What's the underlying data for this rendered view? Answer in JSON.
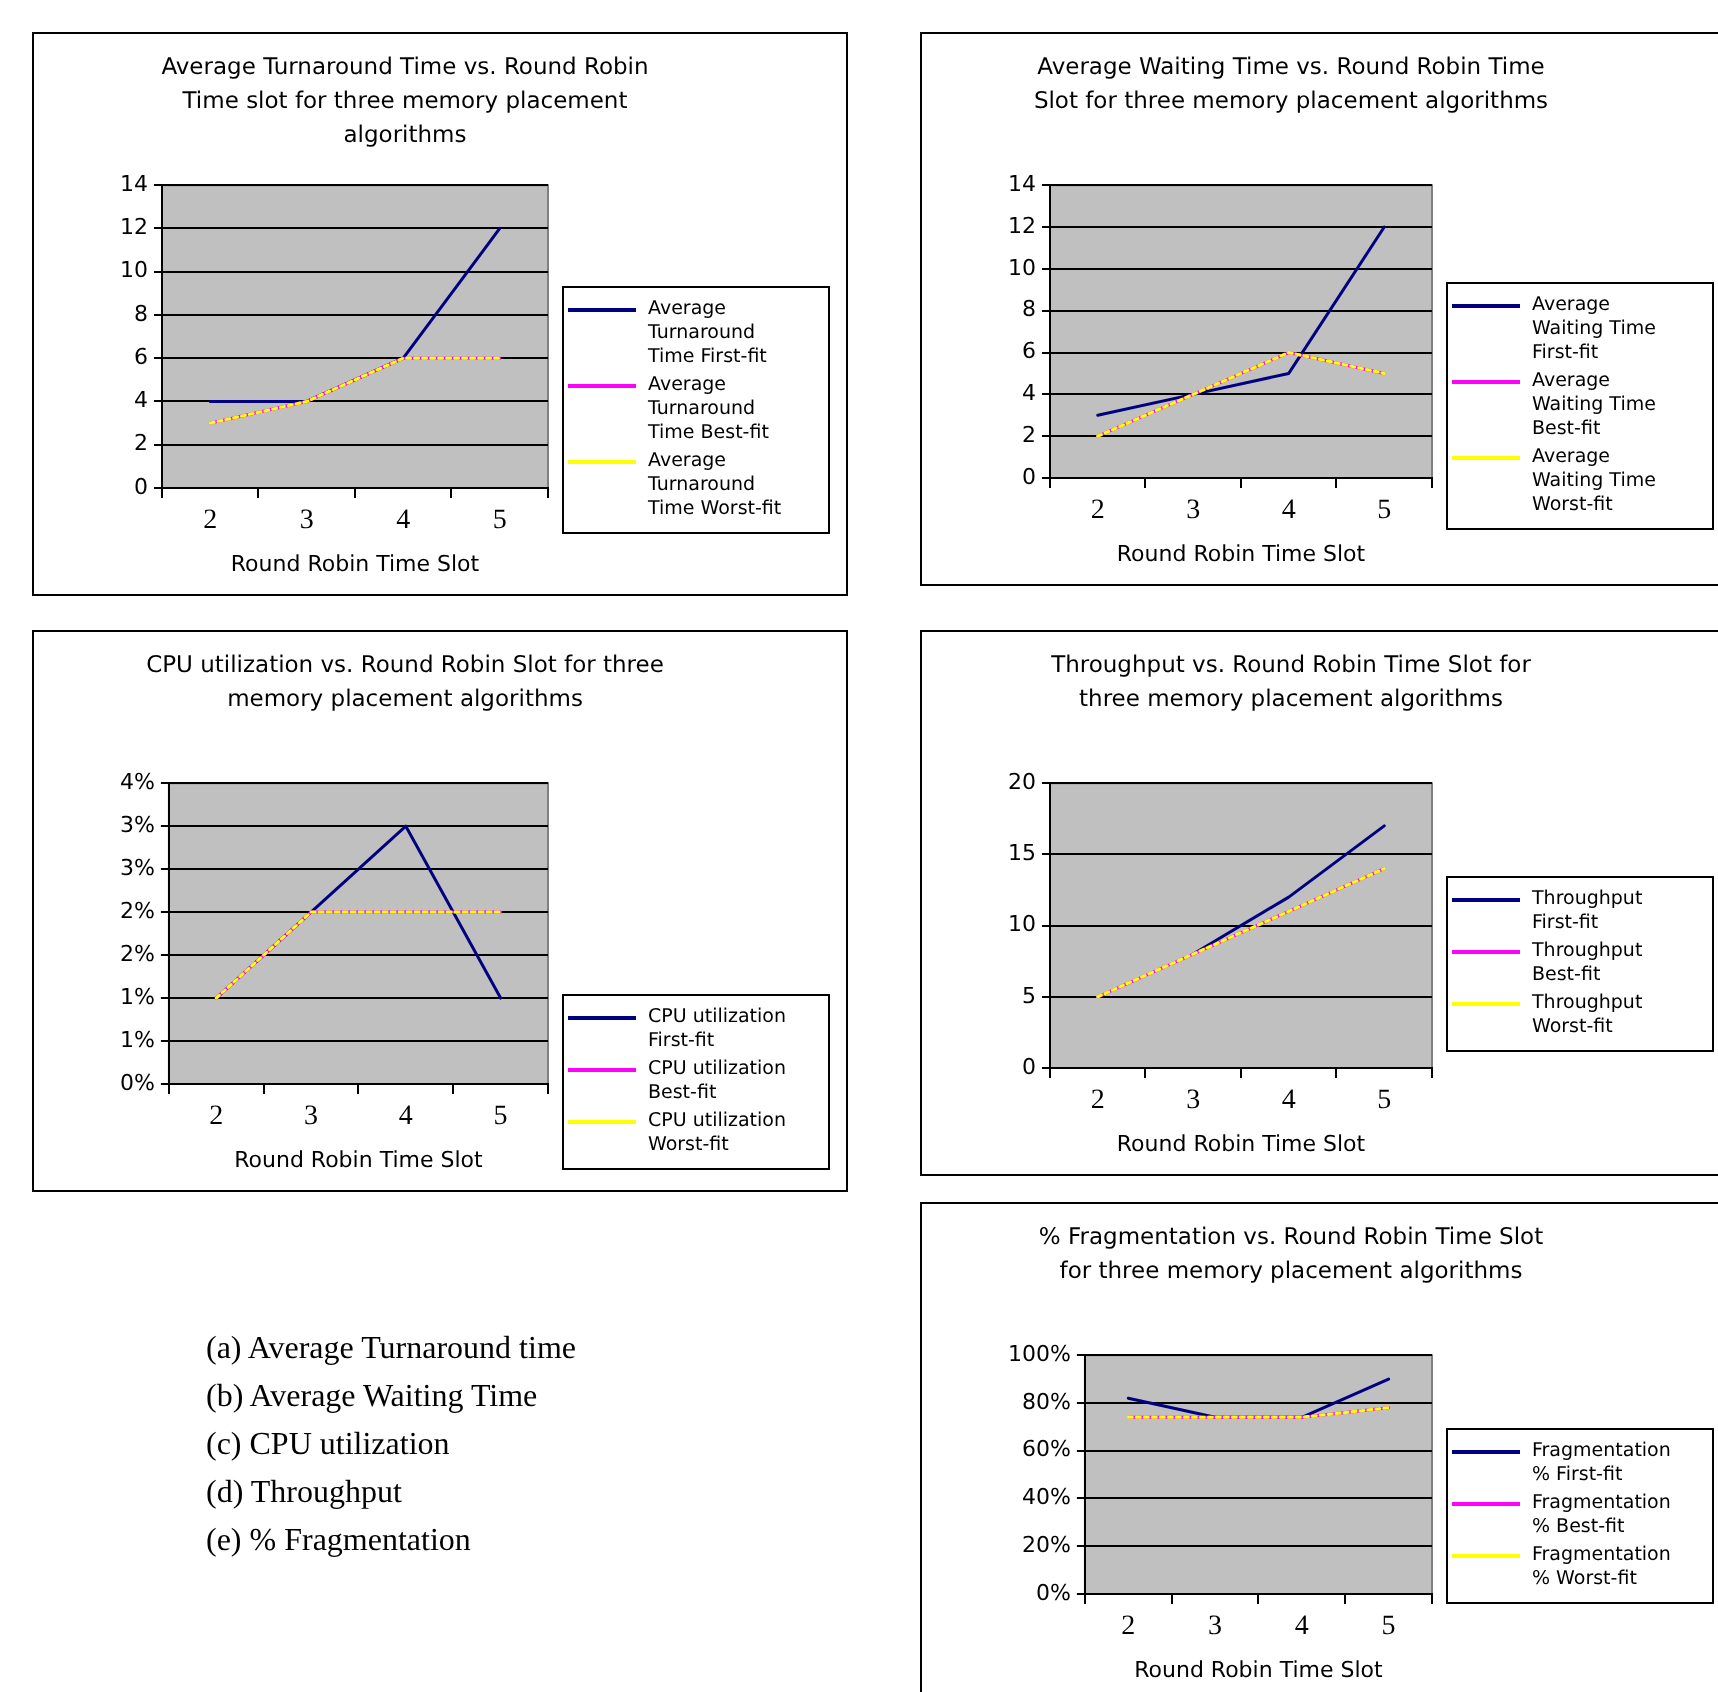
{
  "chart_data": [
    {
      "type": "line",
      "title": "Average Turnaround Time vs. Round Robin Time slot for three memory placement algorithms",
      "xlabel": "Round Robin Time Slot",
      "categories": [
        "2",
        "3",
        "4",
        "5"
      ],
      "ylim": [
        0,
        14
      ],
      "yticks": [
        0,
        2,
        4,
        6,
        8,
        10,
        12,
        14
      ],
      "grid": "y",
      "legend": "right",
      "marker": "none",
      "series": [
        {
          "name": "Average Turnaround Time First-fit",
          "color": "#000080",
          "values": [
            4,
            4,
            6,
            12
          ]
        },
        {
          "name": "Average Turnaround Time Best-fit",
          "color": "#ff00ff",
          "values": [
            3,
            4,
            6,
            6
          ]
        },
        {
          "name": "Average Turnaround Time Worst-fit",
          "color": "#ffff00",
          "values": [
            3,
            4,
            6,
            6
          ],
          "line_style": "dashed"
        }
      ]
    },
    {
      "type": "line",
      "title": "Average Waiting Time vs. Round Robin Time Slot for three memory placement algorithms",
      "xlabel": "Round Robin Time Slot",
      "categories": [
        "2",
        "3",
        "4",
        "5"
      ],
      "ylim": [
        0,
        14
      ],
      "yticks": [
        0,
        2,
        4,
        6,
        8,
        10,
        12,
        14
      ],
      "grid": "y",
      "legend": "right",
      "marker": "none",
      "series": [
        {
          "name": "Average Waiting Time First-fit",
          "color": "#000080",
          "values": [
            3,
            4,
            5,
            12
          ]
        },
        {
          "name": "Average Waiting Time Best-fit",
          "color": "#ff00ff",
          "values": [
            2,
            4,
            6,
            5
          ]
        },
        {
          "name": "Average Waiting Time Worst-fit",
          "color": "#ffff00",
          "values": [
            2,
            4,
            6,
            5
          ],
          "line_style": "dashed"
        }
      ]
    },
    {
      "type": "line",
      "title": "CPU utilization vs. Round Robin Slot for three memory placement algorithms",
      "xlabel": "Round Robin Time Slot",
      "categories": [
        "2",
        "3",
        "4",
        "5"
      ],
      "ylim": [
        0,
        3.5
      ],
      "yticks": [
        {
          "value": 0,
          "label": "0%"
        },
        {
          "value": 0.5,
          "label": "1%"
        },
        {
          "value": 1,
          "label": "1%"
        },
        {
          "value": 1.5,
          "label": "2%"
        },
        {
          "value": 2,
          "label": "2%"
        },
        {
          "value": 2.5,
          "label": "3%"
        },
        {
          "value": 3,
          "label": "3%"
        },
        {
          "value": 3.5,
          "label": "4%"
        }
      ],
      "grid": "y",
      "legend": "bottom right",
      "marker": "none",
      "series": [
        {
          "name": "CPU utilization First-fit",
          "color": "#000080",
          "values": [
            1,
            2,
            3,
            1
          ]
        },
        {
          "name": "CPU utilization Best-fit",
          "color": "#ff00ff",
          "values": [
            1,
            2,
            2,
            2
          ]
        },
        {
          "name": "CPU utilization Worst-fit",
          "color": "#ffff00",
          "values": [
            1,
            2,
            2,
            2
          ],
          "line_style": "dashed"
        }
      ]
    },
    {
      "type": "line",
      "title": "Throughput vs. Round Robin Time Slot for three memory placement algorithms",
      "xlabel": "Round Robin Time Slot",
      "categories": [
        "2",
        "3",
        "4",
        "5"
      ],
      "ylim": [
        0,
        20
      ],
      "yticks": [
        0,
        5,
        10,
        15,
        20
      ],
      "grid": "y",
      "legend": "right",
      "marker": "none",
      "series": [
        {
          "name": "Throughput First-fit",
          "color": "#000080",
          "values": [
            null,
            8,
            12,
            17
          ]
        },
        {
          "name": "Throughput Best-fit",
          "color": "#ff00ff",
          "values": [
            5,
            8,
            11,
            14
          ]
        },
        {
          "name": "Throughput Worst-fit",
          "color": "#ffff00",
          "values": [
            5,
            8,
            11,
            14
          ],
          "line_style": "dashed"
        }
      ]
    },
    {
      "type": "other",
      "annotations": [
        "(a) Average Turnaround time",
        "(b) Average Waiting Time",
        "(c) CPU utilization",
        "(d) Throughput",
        "(e) % Fragmentation"
      ]
    },
    {
      "type": "line",
      "title": "% Fragmentation vs. Round Robin Time Slot for three memory placement algorithms",
      "xlabel": "Round Robin Time Slot",
      "categories": [
        "2",
        "3",
        "4",
        "5"
      ],
      "ylim": [
        0,
        100
      ],
      "yticks": [
        {
          "value": 0,
          "label": "0%"
        },
        {
          "value": 20,
          "label": "20%"
        },
        {
          "value": 40,
          "label": "40%"
        },
        {
          "value": 60,
          "label": "60%"
        },
        {
          "value": 80,
          "label": "80%"
        },
        {
          "value": 100,
          "label": "100%"
        }
      ],
      "grid": "y",
      "legend": "right",
      "marker": "none",
      "series": [
        {
          "name": "Fragmentation % First-fit",
          "color": "#000080",
          "values": [
            82,
            74,
            74,
            90
          ]
        },
        {
          "name": "Fragmentation % Best-fit",
          "color": "#ff00ff",
          "values": [
            74,
            74,
            74,
            78
          ]
        },
        {
          "name": "Fragmentation % Worst-fit",
          "color": "#ffff00",
          "values": [
            74,
            74,
            74,
            78
          ],
          "line_style": "dashed"
        }
      ]
    }
  ]
}
